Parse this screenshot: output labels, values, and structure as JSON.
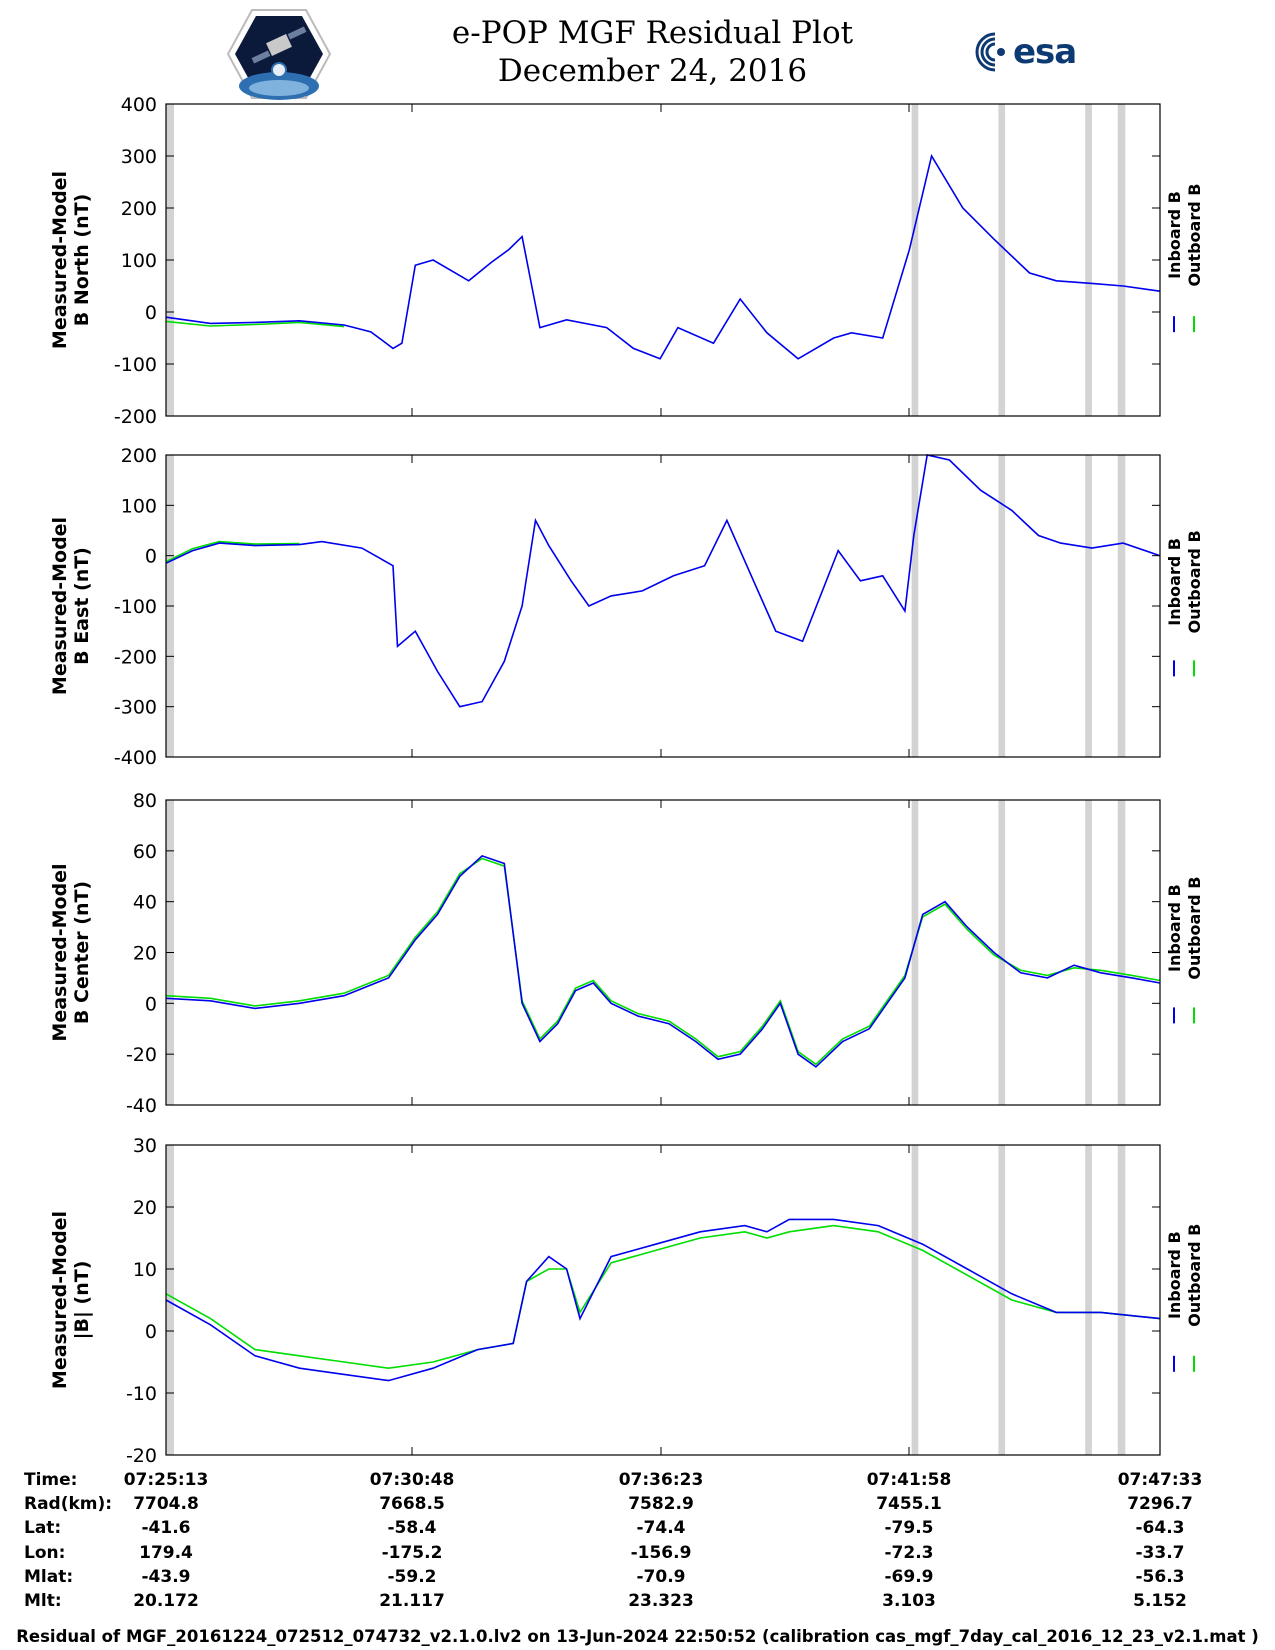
{
  "header": {
    "title_line1": "e-POP MGF Residual Plot",
    "title_line2": "December 24, 2016",
    "mission_logo_icon": "cassiope-mission-patch-icon",
    "agency_logo_text": "esa",
    "agency_logo_icon": "esa-logo-icon"
  },
  "colors": {
    "inboard": "#0000ee",
    "outboard": "#00dd00",
    "gap_shading": "#d3d3d3",
    "axis": "#000000"
  },
  "legend": {
    "inboard_label": "Inboard B",
    "outboard_label": "Outboard B"
  },
  "chart_data": [
    {
      "type": "line",
      "ylabel_line1": "Measured-Model",
      "ylabel_line2": "B North (nT)",
      "ylim": [
        -200,
        400
      ],
      "yticks": [
        -200,
        -100,
        0,
        100,
        200,
        300,
        400
      ],
      "x_time_ticks": [
        "07:25:13",
        "07:30:48",
        "07:36:23",
        "07:41:58",
        "07:47:33"
      ],
      "x_minutes_range": [
        0,
        22.33
      ],
      "gap_bands_minutes": [
        [
          0,
          0.18
        ],
        [
          16.75,
          16.9
        ],
        [
          18.7,
          18.85
        ],
        [
          20.65,
          20.8
        ],
        [
          21.38,
          21.55
        ]
      ],
      "series": [
        {
          "name": "Inboard B",
          "x": [
            0,
            1,
            2,
            3,
            4,
            4.6,
            5.1,
            5.3,
            5.6,
            6,
            6.8,
            7.3,
            7.7,
            8,
            8.4,
            9,
            9.9,
            10.5,
            11.1,
            11.5,
            12.3,
            12.9,
            13.5,
            14.2,
            15,
            15.4,
            16.1,
            16.7,
            17.2,
            17.9,
            18.6,
            19.4,
            20,
            20.8,
            21.5,
            22.33
          ],
          "values": [
            -10,
            -22,
            -20,
            -17,
            -25,
            -38,
            -70,
            -60,
            90,
            100,
            60,
            95,
            120,
            145,
            -30,
            -15,
            -30,
            -70,
            -90,
            -30,
            -60,
            25,
            -40,
            -90,
            -50,
            -40,
            -50,
            120,
            300,
            200,
            140,
            75,
            60,
            55,
            50,
            40
          ]
        },
        {
          "name": "Outboard B",
          "x": [
            0,
            1,
            2,
            3,
            4
          ],
          "values": [
            -18,
            -27,
            -24,
            -20,
            -28
          ]
        }
      ]
    },
    {
      "type": "line",
      "ylabel_line1": "Measured-Model",
      "ylabel_line2": "B East (nT)",
      "ylim": [
        -400,
        200
      ],
      "yticks": [
        -400,
        -300,
        -200,
        -100,
        0,
        100,
        200
      ],
      "x_time_ticks": [
        "07:25:13",
        "07:30:48",
        "07:36:23",
        "07:41:58",
        "07:47:33"
      ],
      "x_minutes_range": [
        0,
        22.33
      ],
      "gap_bands_minutes": [
        [
          0,
          0.18
        ],
        [
          16.75,
          16.9
        ],
        [
          18.7,
          18.85
        ],
        [
          20.65,
          20.8
        ],
        [
          21.38,
          21.55
        ]
      ],
      "series": [
        {
          "name": "Inboard B",
          "x": [
            0,
            0.6,
            1.2,
            2,
            3,
            3.5,
            4.4,
            5.1,
            5.2,
            5.6,
            6.1,
            6.6,
            7.1,
            7.6,
            8,
            8.3,
            8.6,
            9.1,
            9.5,
            10,
            10.7,
            11.4,
            12.1,
            12.6,
            13.1,
            13.7,
            14.3,
            15.1,
            15.6,
            16.1,
            16.6,
            16.8,
            17.1,
            17.6,
            18.3,
            19,
            19.6,
            20.1,
            20.8,
            21.5,
            22.33
          ],
          "values": [
            -15,
            10,
            25,
            20,
            22,
            28,
            15,
            -20,
            -180,
            -150,
            -230,
            -300,
            -290,
            -210,
            -100,
            70,
            20,
            -50,
            -100,
            -80,
            -70,
            -40,
            -20,
            70,
            -30,
            -150,
            -170,
            10,
            -50,
            -40,
            -110,
            40,
            200,
            190,
            130,
            90,
            40,
            25,
            15,
            25,
            0
          ]
        },
        {
          "name": "Outboard B",
          "x": [
            0,
            0.6,
            1.2,
            2,
            3
          ],
          "values": [
            -12,
            14,
            28,
            23,
            24
          ]
        }
      ]
    },
    {
      "type": "line",
      "ylabel_line1": "Measured-Model",
      "ylabel_line2": "B Center (nT)",
      "ylim": [
        -40,
        80
      ],
      "yticks": [
        -40,
        -20,
        0,
        20,
        40,
        60,
        80
      ],
      "x_time_ticks": [
        "07:25:13",
        "07:30:48",
        "07:36:23",
        "07:41:58",
        "07:47:33"
      ],
      "x_minutes_range": [
        0,
        22.33
      ],
      "gap_bands_minutes": [
        [
          0,
          0.18
        ],
        [
          16.75,
          16.9
        ],
        [
          18.7,
          18.85
        ],
        [
          20.65,
          20.8
        ],
        [
          21.38,
          21.55
        ]
      ],
      "series": [
        {
          "name": "Inboard B",
          "x": [
            0,
            1,
            2,
            3,
            4,
            5,
            5.6,
            6.1,
            6.6,
            7.1,
            7.6,
            8,
            8.4,
            8.8,
            9.2,
            9.6,
            10,
            10.6,
            11.3,
            11.9,
            12.4,
            12.9,
            13.4,
            13.8,
            14.2,
            14.6,
            15.2,
            15.8,
            16.2,
            16.6,
            17,
            17.5,
            18,
            18.6,
            19.2,
            19.8,
            20.4,
            21,
            21.7,
            22.33
          ],
          "values": [
            2,
            1,
            -2,
            0,
            3,
            10,
            25,
            35,
            50,
            58,
            55,
            0,
            -15,
            -8,
            5,
            8,
            0,
            -5,
            -8,
            -15,
            -22,
            -20,
            -10,
            0,
            -20,
            -25,
            -15,
            -10,
            0,
            10,
            35,
            40,
            30,
            20,
            12,
            10,
            15,
            12,
            10,
            8
          ]
        },
        {
          "name": "Outboard B",
          "x": [
            0,
            1,
            2,
            3,
            4,
            5,
            5.6,
            6.1,
            6.6,
            7.1,
            7.6,
            8,
            8.4,
            8.8,
            9.2,
            9.6,
            10,
            10.6,
            11.3,
            11.9,
            12.4,
            12.9,
            13.4,
            13.8,
            14.2,
            14.6,
            15.2,
            15.8,
            16.2,
            16.6,
            17,
            17.5,
            18,
            18.6,
            19.2,
            19.8,
            20.4,
            21,
            21.7,
            22.33
          ],
          "values": [
            3,
            2,
            -1,
            1,
            4,
            11,
            26,
            36,
            51,
            57,
            54,
            1,
            -14,
            -7,
            6,
            9,
            1,
            -4,
            -7,
            -14,
            -21,
            -19,
            -9,
            1,
            -19,
            -24,
            -14,
            -9,
            1,
            11,
            34,
            39,
            29,
            19,
            13,
            11,
            14,
            13,
            11,
            9
          ]
        }
      ]
    },
    {
      "type": "line",
      "ylabel_line1": "Measured-Model",
      "ylabel_line2": "|B| (nT)",
      "ylim": [
        -20,
        30
      ],
      "yticks": [
        -20,
        -10,
        0,
        10,
        20,
        30
      ],
      "x_time_ticks": [
        "07:25:13",
        "07:30:48",
        "07:36:23",
        "07:41:58",
        "07:47:33"
      ],
      "x_minutes_range": [
        0,
        22.33
      ],
      "gap_bands_minutes": [
        [
          0,
          0.18
        ],
        [
          16.75,
          16.9
        ],
        [
          18.7,
          18.85
        ],
        [
          20.65,
          20.8
        ],
        [
          21.38,
          21.55
        ]
      ],
      "series": [
        {
          "name": "Inboard B",
          "x": [
            0,
            1,
            2,
            3,
            4,
            5,
            6,
            7,
            7.8,
            8.1,
            8.6,
            9,
            9.3,
            10,
            11,
            12,
            13,
            13.5,
            14,
            15,
            16,
            17,
            18,
            19,
            20,
            21,
            22.33
          ],
          "values": [
            5,
            1,
            -4,
            -6,
            -7,
            -8,
            -6,
            -3,
            -2,
            8,
            12,
            10,
            2,
            12,
            14,
            16,
            17,
            16,
            18,
            18,
            17,
            14,
            10,
            6,
            3,
            3,
            2
          ]
        },
        {
          "name": "Outboard B",
          "x": [
            0,
            1,
            2,
            3,
            4,
            5,
            6,
            7,
            7.8,
            8.1,
            8.6,
            9,
            9.3,
            10,
            11,
            12,
            13,
            13.5,
            14,
            15,
            16,
            17,
            18,
            19,
            20,
            21,
            22.33
          ],
          "values": [
            6,
            2,
            -3,
            -4,
            -5,
            -6,
            -5,
            -3,
            -2,
            8,
            10,
            10,
            3,
            11,
            13,
            15,
            16,
            15,
            16,
            17,
            16,
            13,
            9,
            5,
            3,
            3,
            2
          ]
        }
      ]
    }
  ],
  "ephemeris": {
    "labels": [
      "Time:",
      "Rad(km):",
      "Lat:",
      "Lon:",
      "Mlat:",
      "Mlt:"
    ],
    "columns": [
      [
        "07:25:13",
        "7704.8",
        "-41.6",
        "179.4",
        "-43.9",
        "20.172"
      ],
      [
        "07:30:48",
        "7668.5",
        "-58.4",
        "-175.2",
        "-59.2",
        "21.117"
      ],
      [
        "07:36:23",
        "7582.9",
        "-74.4",
        "-156.9",
        "-70.9",
        "23.323"
      ],
      [
        "07:41:58",
        "7455.1",
        "-79.5",
        "-72.3",
        "-69.9",
        "3.103"
      ],
      [
        "07:47:33",
        "7296.7",
        "-64.3",
        "-33.7",
        "-56.3",
        "5.152"
      ]
    ]
  },
  "footer": {
    "text": "Residual of MGF_20161224_072512_074732_v2.1.0.lv2 on 13-Jun-2024 22:50:52 (calibration cas_mgf_7day_cal_2016_12_23_v2.1.mat )"
  }
}
